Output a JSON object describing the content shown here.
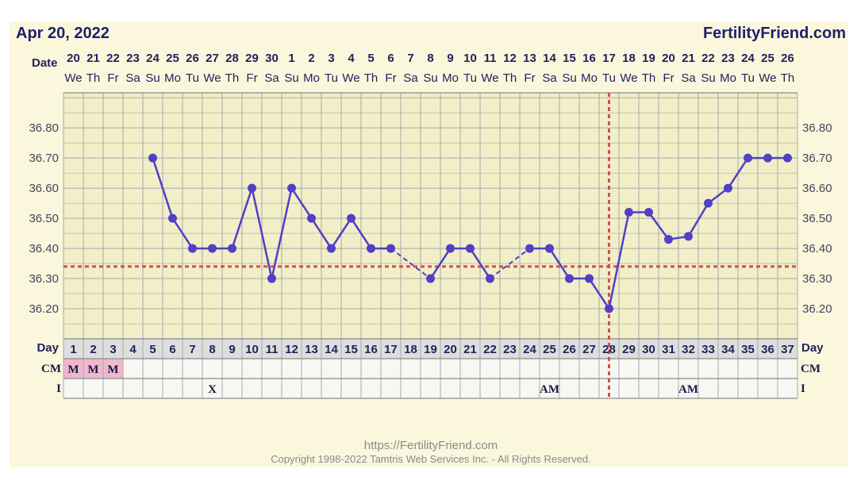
{
  "header": {
    "date_title": "Apr 20, 2022",
    "brand": "FertilityFriend.com"
  },
  "row_labels": {
    "date": "Date",
    "day": "Day",
    "cm": "CM",
    "intercourse": "I"
  },
  "footer": {
    "url": "https://FertilityFriend.com",
    "copyright": "Copyright 1998-2022 Tamtris Web Services Inc. - All Rights Reserved."
  },
  "colors": {
    "line": "#5040c4",
    "reference": "#d0504e",
    "grid": "#a8a8a8",
    "cm_highlight": "#f0b8cc"
  },
  "chart_data": {
    "type": "line",
    "title": "",
    "ylabel": "",
    "xlabel": "",
    "grid": true,
    "ylim": [
      36.1,
      36.9
    ],
    "y_ticks": [
      "36.20",
      "36.30",
      "36.40",
      "36.50",
      "36.60",
      "36.70",
      "36.80"
    ],
    "cycle_days": [
      1,
      2,
      3,
      4,
      5,
      6,
      7,
      8,
      9,
      10,
      11,
      12,
      13,
      14,
      15,
      16,
      17,
      18,
      19,
      20,
      21,
      22,
      23,
      24,
      25,
      26,
      27,
      28,
      29,
      30,
      31,
      32,
      33,
      34,
      35,
      36,
      37
    ],
    "dates": [
      "20",
      "21",
      "22",
      "23",
      "24",
      "25",
      "26",
      "27",
      "28",
      "29",
      "30",
      "1",
      "2",
      "3",
      "4",
      "5",
      "6",
      "7",
      "8",
      "9",
      "10",
      "11",
      "12",
      "13",
      "14",
      "15",
      "16",
      "17",
      "18",
      "19",
      "20",
      "21",
      "22",
      "23",
      "24",
      "25",
      "26"
    ],
    "weekdays": [
      "We",
      "Th",
      "Fr",
      "Sa",
      "Su",
      "Mo",
      "Tu",
      "We",
      "Th",
      "Fr",
      "Sa",
      "Su",
      "Mo",
      "Tu",
      "We",
      "Th",
      "Fr",
      "Sa",
      "Su",
      "Mo",
      "Tu",
      "We",
      "Th",
      "Fr",
      "Sa",
      "Su",
      "Mo",
      "Tu",
      "We",
      "Th",
      "Fr",
      "Sa",
      "Su",
      "Mo",
      "Tu",
      "We",
      "Th"
    ],
    "temperatures": [
      {
        "day": 5,
        "value": 36.7
      },
      {
        "day": 6,
        "value": 36.5
      },
      {
        "day": 7,
        "value": 36.4
      },
      {
        "day": 8,
        "value": 36.4
      },
      {
        "day": 9,
        "value": 36.4
      },
      {
        "day": 10,
        "value": 36.6
      },
      {
        "day": 11,
        "value": 36.3
      },
      {
        "day": 12,
        "value": 36.6
      },
      {
        "day": 13,
        "value": 36.5
      },
      {
        "day": 14,
        "value": 36.4
      },
      {
        "day": 15,
        "value": 36.5
      },
      {
        "day": 16,
        "value": 36.4
      },
      {
        "day": 17,
        "value": 36.4
      },
      {
        "day": 19,
        "value": 36.3
      },
      {
        "day": 20,
        "value": 36.4
      },
      {
        "day": 21,
        "value": 36.4
      },
      {
        "day": 22,
        "value": 36.3
      },
      {
        "day": 24,
        "value": 36.4
      },
      {
        "day": 25,
        "value": 36.4
      },
      {
        "day": 26,
        "value": 36.3
      },
      {
        "day": 27,
        "value": 36.3
      },
      {
        "day": 28,
        "value": 36.2
      },
      {
        "day": 29,
        "value": 36.52
      },
      {
        "day": 30,
        "value": 36.52
      },
      {
        "day": 31,
        "value": 36.43
      },
      {
        "day": 32,
        "value": 36.44
      },
      {
        "day": 33,
        "value": 36.55
      },
      {
        "day": 34,
        "value": 36.6
      },
      {
        "day": 35,
        "value": 36.7
      },
      {
        "day": 36,
        "value": 36.7
      },
      {
        "day": 37,
        "value": 36.7
      }
    ],
    "coverline": 36.34,
    "ovulation_day": 28,
    "cm": [
      {
        "day": 1,
        "label": "M"
      },
      {
        "day": 2,
        "label": "M"
      },
      {
        "day": 3,
        "label": "M"
      }
    ],
    "intercourse": [
      {
        "day": 8,
        "label": "X"
      },
      {
        "day": 25,
        "label": "AM"
      },
      {
        "day": 32,
        "label": "AM"
      }
    ]
  }
}
